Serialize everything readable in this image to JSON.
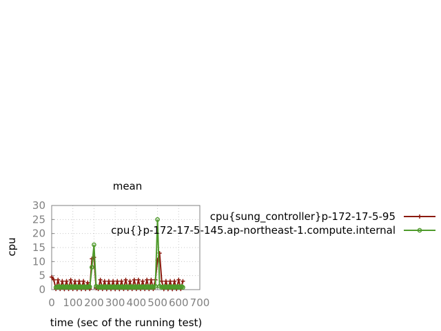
{
  "chart_data": {
    "type": "line",
    "title": "mean",
    "xlabel": "time (sec of the running test)",
    "ylabel": "cpu",
    "xlim": [
      0,
      700
    ],
    "ylim": [
      0,
      30
    ],
    "xticks": [
      0,
      100,
      200,
      300,
      400,
      500,
      600,
      700
    ],
    "yticks": [
      0,
      5,
      10,
      15,
      20,
      25,
      30
    ],
    "xtick_labels": [
      "0",
      "100",
      "200",
      "300",
      "400",
      "500",
      "600",
      "700"
    ],
    "ytick_labels": [
      "0",
      "5",
      "10",
      "15",
      "20",
      "25",
      "30"
    ],
    "grid": true,
    "legend_position": "right",
    "series": [
      {
        "name": "cpu{sung_controller}p-172-17-5-95",
        "color": "#8b1a0e",
        "marker": "plus",
        "x": [
          0,
          10,
          20,
          30,
          40,
          50,
          60,
          70,
          80,
          90,
          100,
          110,
          120,
          130,
          140,
          150,
          160,
          170,
          180,
          190,
          200,
          210,
          220,
          230,
          240,
          250,
          260,
          270,
          280,
          290,
          300,
          310,
          320,
          330,
          340,
          350,
          360,
          370,
          380,
          390,
          400,
          410,
          420,
          430,
          440,
          450,
          460,
          470,
          480,
          490,
          500,
          510,
          520,
          530,
          540,
          550,
          560,
          570,
          580,
          590,
          600,
          610,
          620
        ],
        "y": [
          4.5,
          3.5,
          0.2,
          3.5,
          0.2,
          3,
          0.2,
          3,
          0.2,
          3.5,
          0.2,
          3,
          0.2,
          3,
          0.2,
          3,
          0.2,
          2.5,
          0.2,
          11,
          11.5,
          0.5,
          0.2,
          3.5,
          0.2,
          3,
          0.2,
          3,
          0.2,
          3,
          0.2,
          3,
          0.2,
          3,
          0.2,
          3.5,
          0.2,
          3,
          0.2,
          3.5,
          0.2,
          3.5,
          0.2,
          3,
          0.2,
          3.5,
          0.2,
          3.5,
          0.2,
          3.5,
          10.5,
          13,
          3,
          0.2,
          3,
          0.2,
          3,
          0.2,
          3,
          0.2,
          3.5,
          0.2,
          3
        ]
      },
      {
        "name": "cpu{}p-172-17-5-145.ap-northeast-1.compute.internal",
        "color": "#4e9a2a",
        "marker": "circle",
        "x": [
          20,
          25,
          30,
          35,
          40,
          45,
          50,
          55,
          60,
          65,
          70,
          75,
          80,
          85,
          90,
          95,
          100,
          105,
          110,
          115,
          120,
          125,
          130,
          135,
          140,
          145,
          150,
          155,
          160,
          165,
          170,
          175,
          180,
          190,
          200,
          210,
          220,
          225,
          230,
          235,
          240,
          245,
          250,
          255,
          260,
          265,
          270,
          275,
          280,
          285,
          290,
          295,
          300,
          305,
          310,
          315,
          320,
          325,
          330,
          335,
          340,
          345,
          350,
          355,
          360,
          365,
          370,
          375,
          380,
          385,
          390,
          395,
          400,
          405,
          410,
          415,
          420,
          425,
          430,
          435,
          440,
          445,
          450,
          455,
          460,
          465,
          470,
          475,
          480,
          490,
          500,
          510,
          520,
          525,
          530,
          535,
          540,
          545,
          550,
          555,
          560,
          565,
          570,
          575,
          580,
          585,
          590,
          595,
          600,
          605,
          610,
          615,
          620
        ],
        "y": [
          0.8,
          1.0,
          0.9,
          1.1,
          0.8,
          1.0,
          0.9,
          1.1,
          0.8,
          1.0,
          0.9,
          1.1,
          0.8,
          1.0,
          0.9,
          1.1,
          0.8,
          1.0,
          0.9,
          1.1,
          0.8,
          1.0,
          0.9,
          1.1,
          0.8,
          1.0,
          0.9,
          1.1,
          0.8,
          1.0,
          0.9,
          1.1,
          1.0,
          8,
          16,
          1.2,
          0.8,
          1.0,
          0.9,
          1.1,
          0.8,
          1.0,
          0.9,
          1.1,
          0.8,
          1.0,
          0.9,
          1.1,
          0.8,
          1.0,
          0.9,
          1.1,
          0.8,
          1.0,
          0.9,
          1.1,
          0.8,
          1.0,
          0.9,
          1.1,
          0.8,
          1.0,
          0.9,
          1.1,
          0.8,
          1.0,
          0.9,
          1.1,
          0.8,
          1.0,
          0.9,
          1.1,
          0.8,
          1.0,
          0.9,
          1.1,
          0.8,
          1.0,
          0.9,
          1.1,
          0.8,
          1.0,
          0.9,
          1.1,
          0.8,
          1.0,
          0.9,
          1.1,
          0.8,
          1.2,
          25,
          1.2,
          0.8,
          1.0,
          0.9,
          1.1,
          0.8,
          1.0,
          0.9,
          1.1,
          0.8,
          1.0,
          0.9,
          1.1,
          0.8,
          1.0,
          0.9,
          1.1,
          0.8,
          1.0,
          0.9,
          1.1,
          0.8
        ]
      }
    ]
  }
}
